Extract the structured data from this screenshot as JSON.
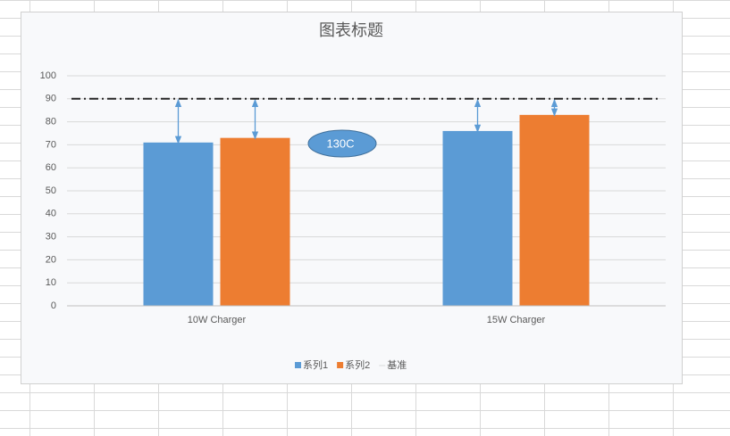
{
  "chart_data": {
    "type": "bar",
    "title": "图表标题",
    "categories": [
      "10W Charger",
      "15W Charger"
    ],
    "series": [
      {
        "name": "系列1",
        "color": "#5b9bd5",
        "values": [
          71,
          76
        ]
      },
      {
        "name": "系列2",
        "color": "#ed7d31",
        "values": [
          73,
          83
        ]
      },
      {
        "name": "基准",
        "color": "#262626",
        "type": "line",
        "line_style": "dash-dot",
        "values": [
          90,
          90
        ]
      }
    ],
    "annotations": [
      "130C"
    ],
    "ylim": [
      0,
      100
    ],
    "yticks": [
      0,
      10,
      20,
      30,
      40,
      50,
      60,
      70,
      80,
      90,
      100
    ],
    "grid": true,
    "legend": "bottom"
  }
}
